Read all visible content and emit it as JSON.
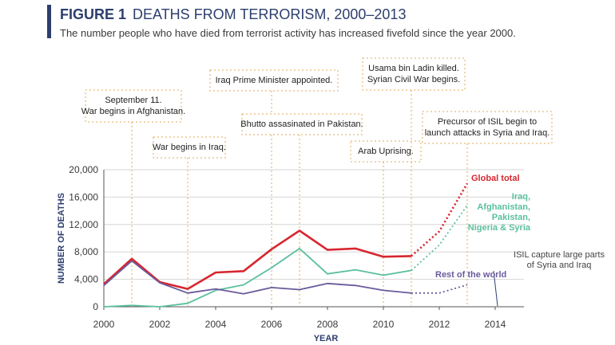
{
  "header": {
    "figure_label": "FIGURE 1",
    "title": "DEATHS FROM TERRORISM, 2000–2013",
    "subtitle": "The number people who have died from terrorist activity has increased fivefold since the year 2000."
  },
  "chart_data": {
    "type": "line",
    "xlabel": "YEAR",
    "ylabel": "NUMBER OF DEATHS",
    "xlim": [
      2000,
      2014
    ],
    "ylim": [
      0,
      20000
    ],
    "x_ticks": [
      "2000",
      "2002",
      "2004",
      "2006",
      "2008",
      "2010",
      "2012",
      "2014"
    ],
    "y_ticks": [
      "0",
      "4,000",
      "8,000",
      "12,000",
      "16,000",
      "20,000"
    ],
    "x": [
      2000,
      2001,
      2002,
      2003,
      2004,
      2005,
      2006,
      2007,
      2008,
      2009,
      2010,
      2011,
      2012,
      2013
    ],
    "series": [
      {
        "name": "Global total",
        "color": "#d7262f",
        "values": [
          3300,
          7000,
          3600,
          2600,
          5000,
          5200,
          8400,
          11100,
          8300,
          8500,
          7300,
          7400,
          11000,
          18000
        ],
        "dashed_from": 2011
      },
      {
        "name": "Iraq, Afghanistan, Pakistan, Nigeria & Syria",
        "color": "#5bbf9e",
        "values": [
          0,
          200,
          0,
          500,
          2400,
          3200,
          5700,
          8500,
          4800,
          5400,
          4600,
          5300,
          9000,
          14800
        ],
        "dashed_from": 2011
      },
      {
        "name": "Rest of the world",
        "color": "#6a5a9c",
        "values": [
          3100,
          6700,
          3500,
          2000,
          2600,
          1900,
          2800,
          2500,
          3400,
          3100,
          2400,
          2000,
          2000,
          3200
        ],
        "dashed_from": 2011
      }
    ],
    "series_labels": [
      {
        "lines": [
          "Global total"
        ],
        "color": "#d7262f"
      },
      {
        "lines": [
          "Iraq,",
          "Afghanistan,",
          "Pakistan,",
          "Nigeria & Syria"
        ],
        "color": "#5bbf9e"
      },
      {
        "lines": [
          "Rest of the world"
        ],
        "color": "#6a5a9c"
      }
    ],
    "annotations": [
      {
        "year": 2001,
        "lines": [
          "September 11.",
          "War begins in Afghanistan."
        ]
      },
      {
        "year": 2003,
        "lines": [
          "War begins in Iraq."
        ]
      },
      {
        "year": 2006,
        "lines": [
          "Iraq Prime Minister appointed."
        ]
      },
      {
        "year": 2007,
        "lines": [
          "Bhutto assasinated in Pakistan."
        ]
      },
      {
        "year": 2010,
        "lines": [
          "Arab Uprising."
        ]
      },
      {
        "year": 2011,
        "lines": [
          "Usama bin Ladin killed.",
          "Syrian Civil War begins."
        ]
      },
      {
        "year": 2013,
        "lines": [
          "Precursor of ISIL begin to",
          "launch attacks in Syria and Iraq."
        ]
      }
    ],
    "isil_note": {
      "year": 2014,
      "lines": [
        "ISIL capture large parts",
        "of Syria and Iraq"
      ]
    },
    "grid": true,
    "legend": "direct labels at line ends"
  }
}
